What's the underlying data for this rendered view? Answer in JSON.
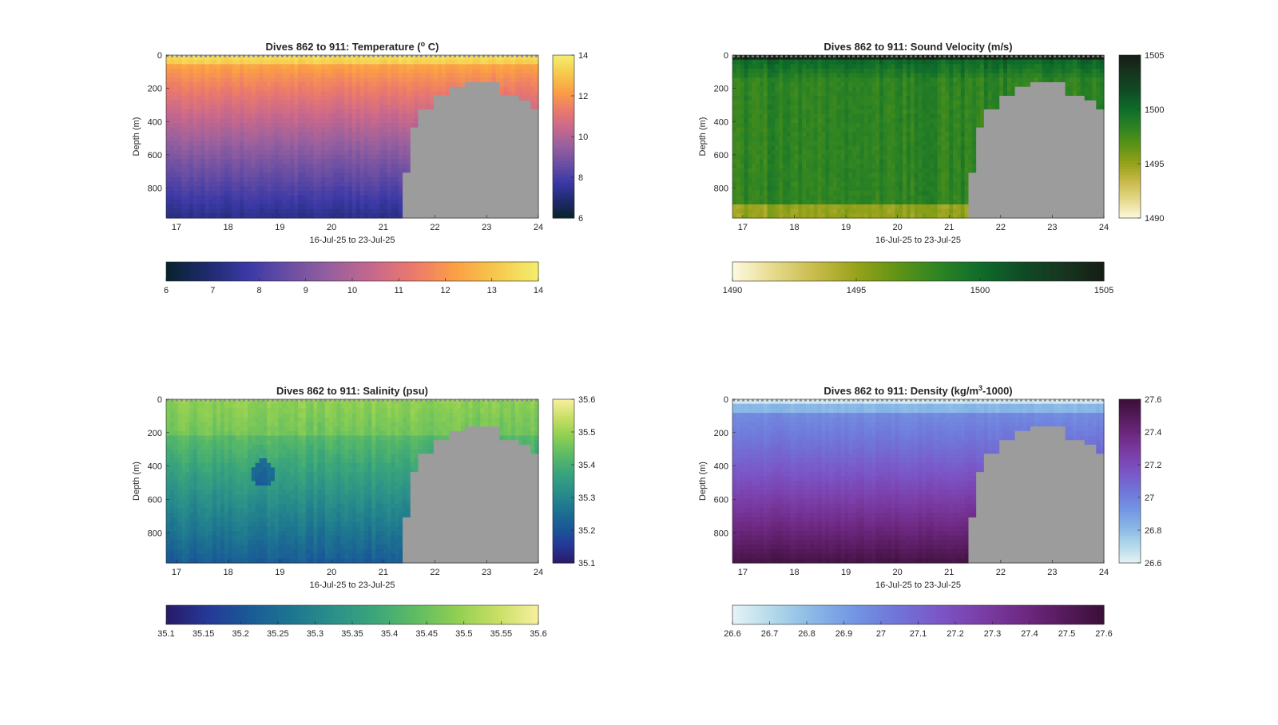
{
  "chart_data": [
    {
      "type": "heatmap",
      "title": "Dives 862 to 911: Temperature (° C)",
      "title_main": "Dives 862 to 911: Temperature (",
      "title_sup": "o",
      "title_tail": " C)",
      "xlabel": "16-Jul-25 to 23-Jul-25",
      "ylabel": "Depth (m)",
      "x_ticks": [
        "17",
        "18",
        "19",
        "20",
        "21",
        "22",
        "23",
        "24"
      ],
      "xlim": [
        16.8,
        24
      ],
      "y_ticks": [
        "0",
        "200",
        "400",
        "600",
        "800"
      ],
      "ylim": [
        0,
        980
      ],
      "colorbar_ticks": [
        "6",
        "8",
        "10",
        "12",
        "14"
      ],
      "horizontal_colorbar_ticks": [
        "6",
        "7",
        "8",
        "9",
        "10",
        "11",
        "12",
        "13",
        "14"
      ],
      "clim": [
        6,
        14
      ],
      "colormap": [
        "#08222c",
        "#1e2b6e",
        "#3c39a6",
        "#6b4fa3",
        "#98609e",
        "#c8688c",
        "#ec7a6b",
        "#fb9f45",
        "#f6c94c",
        "#f4ee6f"
      ]
    },
    {
      "type": "heatmap",
      "title": "Dives 862 to 911: Sound Velocity (m/s)",
      "title_main": "Dives 862 to 911: Sound Velocity (m/s)",
      "title_sup": "",
      "title_tail": "",
      "xlabel": "16-Jul-25 to 23-Jul-25",
      "ylabel": "Depth (m)",
      "x_ticks": [
        "17",
        "18",
        "19",
        "20",
        "21",
        "22",
        "23",
        "24"
      ],
      "xlim": [
        16.8,
        24
      ],
      "y_ticks": [
        "0",
        "200",
        "400",
        "600",
        "800"
      ],
      "ylim": [
        0,
        980
      ],
      "colorbar_ticks": [
        "1490",
        "1495",
        "1500",
        "1505"
      ],
      "horizontal_colorbar_ticks": [
        "1490",
        "1495",
        "1500",
        "1505"
      ],
      "clim": [
        1490,
        1505
      ],
      "colormap": [
        "#fdfae0",
        "#e6d98c",
        "#c9bb4c",
        "#97a21a",
        "#5f9416",
        "#2e8423",
        "#0f6d2a",
        "#0f4c25",
        "#163620",
        "#161d14"
      ]
    },
    {
      "type": "heatmap",
      "title": "Dives 862 to 911: Salinity (psu)",
      "title_main": "Dives 862 to 911: Salinity (psu)",
      "title_sup": "",
      "title_tail": "",
      "xlabel": "16-Jul-25 to 23-Jul-25",
      "ylabel": "Depth (m)",
      "x_ticks": [
        "17",
        "18",
        "19",
        "20",
        "21",
        "22",
        "23",
        "24"
      ],
      "xlim": [
        16.8,
        24
      ],
      "y_ticks": [
        "0",
        "200",
        "400",
        "600",
        "800"
      ],
      "ylim": [
        0,
        980
      ],
      "colorbar_ticks": [
        "35.1",
        "35.2",
        "35.3",
        "35.4",
        "35.5",
        "35.6"
      ],
      "horizontal_colorbar_ticks": [
        "35.1",
        "35.15",
        "35.2",
        "35.25",
        "35.3",
        "35.35",
        "35.4",
        "35.45",
        "35.5",
        "35.55",
        "35.6"
      ],
      "clim": [
        35.1,
        35.6
      ],
      "colormap": [
        "#291a67",
        "#253898",
        "#1a5a97",
        "#1d7590",
        "#2a8f8a",
        "#3aa57b",
        "#5dbb64",
        "#8fcf52",
        "#c7df63",
        "#f8ef9f"
      ]
    },
    {
      "type": "heatmap",
      "title": "Dives 862 to 911: Density (kg/m³-1000)",
      "title_main": "Dives 862 to 911: Density (kg/m",
      "title_sup": "3",
      "title_tail": "-1000)",
      "xlabel": "16-Jul-25 to 23-Jul-25",
      "ylabel": "Depth (m)",
      "x_ticks": [
        "17",
        "18",
        "19",
        "20",
        "21",
        "22",
        "23",
        "24"
      ],
      "xlim": [
        16.8,
        24
      ],
      "y_ticks": [
        "0",
        "200",
        "400",
        "600",
        "800"
      ],
      "ylim": [
        0,
        980
      ],
      "colorbar_ticks": [
        "26.6",
        "26.8",
        "27",
        "27.2",
        "27.4",
        "27.6"
      ],
      "horizontal_colorbar_ticks": [
        "26.6",
        "26.7",
        "26.8",
        "26.9",
        "27",
        "27.1",
        "27.2",
        "27.3",
        "27.4",
        "27.5",
        "27.6"
      ],
      "clim": [
        26.6,
        27.6
      ],
      "colormap": [
        "#e6f3f5",
        "#b1d8ea",
        "#88b6e6",
        "#7294e3",
        "#7074d8",
        "#7b56c7",
        "#7b3ea8",
        "#6f2a84",
        "#571b5d",
        "#3a0f38"
      ]
    }
  ],
  "colors": {
    "missing_data": "#9c9c9c",
    "axis": "#262626",
    "background": "#ffffff"
  }
}
